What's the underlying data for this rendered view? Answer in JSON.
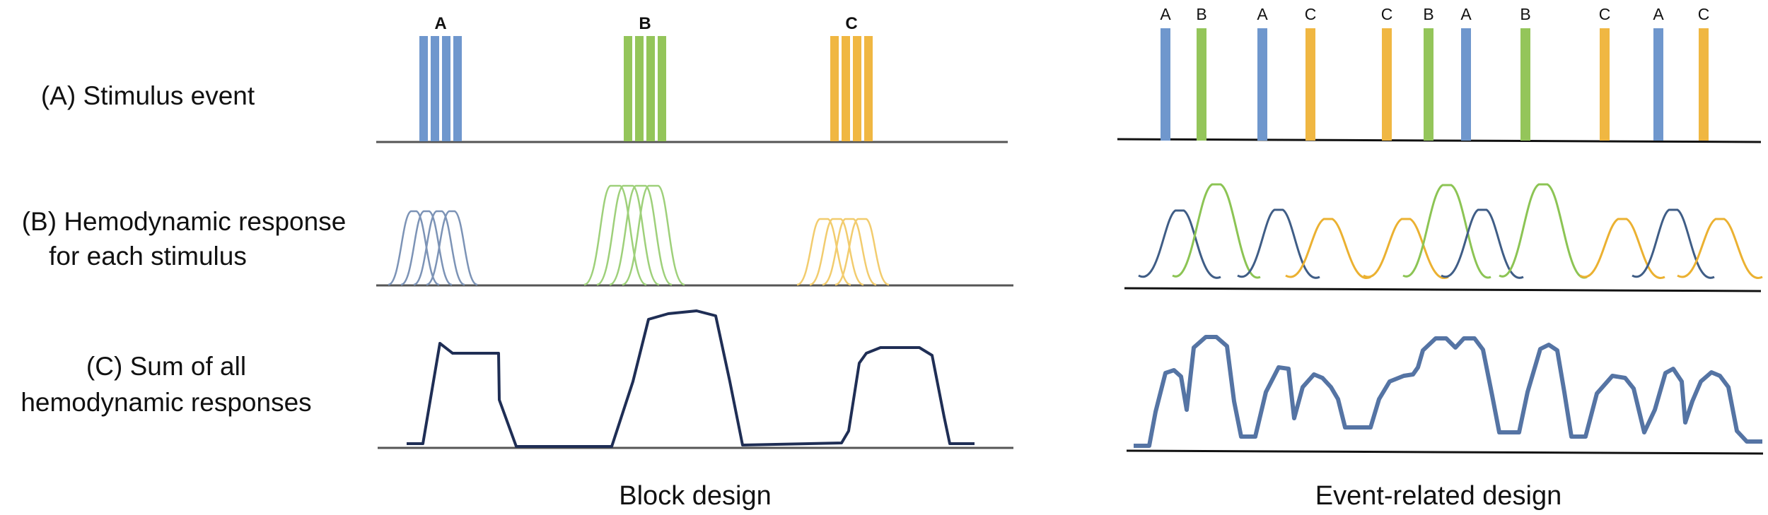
{
  "row_labels": {
    "a": "(A) Stimulus event",
    "b_line1": "(B) Hemodynamic response",
    "b_line2": "for each stimulus",
    "c_line1": "(C) Sum of all",
    "c_line2": "hemodynamic responses"
  },
  "captions": {
    "block": "Block design",
    "event": "Event-related design"
  },
  "colors": {
    "A": "#6f97cd",
    "B": "#94c55a",
    "C": "#f0b742",
    "hrf_A": "#7c93b6",
    "hrf_B": "#9ed07a",
    "hrf_C": "#f2cc6e",
    "event_hrf_A": "#3f5d86",
    "event_hrf_B": "#8cc454",
    "event_hrf_C": "#ebb131",
    "sum_block": "#1f2e55",
    "sum_event": "#5574a4"
  },
  "block_design": {
    "groups": [
      {
        "label": "A",
        "condition": "A"
      },
      {
        "label": "B",
        "condition": "B"
      },
      {
        "label": "C",
        "condition": "C"
      }
    ]
  },
  "event_design": {
    "events": [
      {
        "label": "A",
        "condition": "A"
      },
      {
        "label": "B",
        "condition": "B"
      },
      {
        "label": "A",
        "condition": "A"
      },
      {
        "label": "C",
        "condition": "C"
      },
      {
        "label": "C",
        "condition": "C"
      },
      {
        "label": "B",
        "condition": "B"
      },
      {
        "label": "A",
        "condition": "A"
      },
      {
        "label": "B",
        "condition": "B"
      },
      {
        "label": "C",
        "condition": "C"
      },
      {
        "label": "A",
        "condition": "A"
      },
      {
        "label": "C",
        "condition": "C"
      }
    ]
  }
}
